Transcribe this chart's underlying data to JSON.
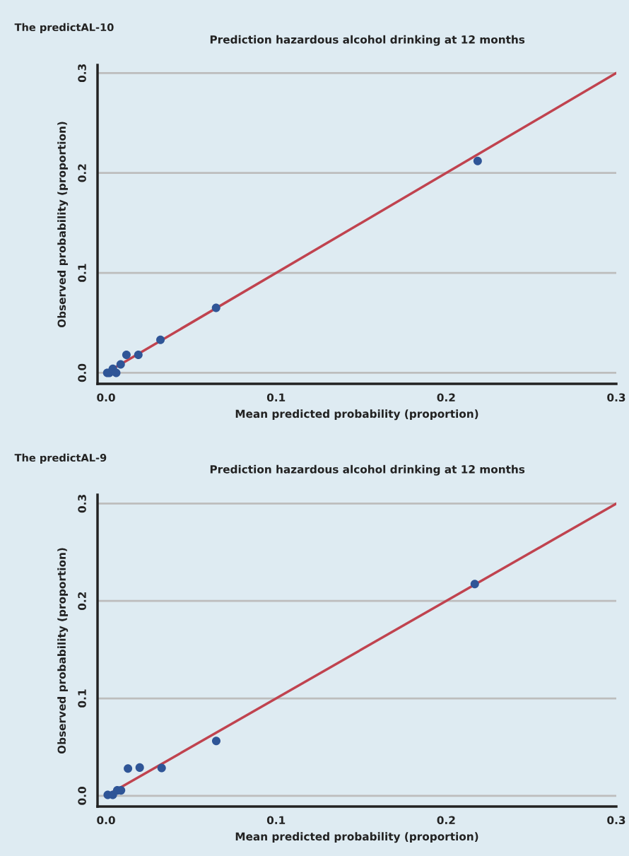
{
  "chart_data": [
    {
      "type": "scatter",
      "subtitle": "The predictAL-10",
      "title": "Prediction hazardous alcohol drinking at 12 months",
      "xlabel": "Mean predicted probability (proportion)",
      "ylabel": "Observed probability (proportion)",
      "series": [
        {
          "marker": "circle",
          "color": "#2f5597",
          "x": [
            0.0007,
            0.002,
            0.004,
            0.006,
            0.0086,
            0.012,
            0.019,
            0.032,
            0.0647,
            0.2185
          ],
          "values": [
            0.0,
            0.0,
            0.004,
            0.0,
            0.0085,
            0.018,
            0.018,
            0.033,
            0.065,
            0.212
          ]
        },
        {
          "type": "line",
          "marker": "none",
          "color": "#c0434f",
          "x": [
            0,
            0.3
          ],
          "values": [
            0,
            0.3
          ]
        }
      ],
      "xlim": [
        -0.005,
        0.3
      ],
      "ylim": [
        -0.011,
        0.308
      ],
      "xticks": [
        {
          "value": 0,
          "label": "0.0"
        },
        0.1,
        0.2,
        0.3
      ],
      "yticks": [
        {
          "value": 0,
          "label": "0.0"
        },
        0.1,
        0.2,
        0.3
      ],
      "grid": "y"
    },
    {
      "type": "scatter",
      "subtitle": "The predictAL-9",
      "title": "Prediction hazardous alcohol drinking at 12 months",
      "xlabel": "Mean predicted probability (proportion)",
      "ylabel": "Observed probability (proportion)",
      "series": [
        {
          "marker": "circle",
          "color": "#2f5597",
          "x": [
            0.001,
            0.004,
            0.0066,
            0.0088,
            0.0129,
            0.0198,
            0.0327,
            0.0648,
            0.2168
          ],
          "values": [
            0.001,
            0.001,
            0.0056,
            0.0056,
            0.028,
            0.029,
            0.0285,
            0.0563,
            0.2174
          ]
        },
        {
          "type": "line",
          "marker": "none",
          "color": "#c0434f",
          "x": [
            0,
            0.3
          ],
          "values": [
            0,
            0.3
          ]
        }
      ],
      "xlim": [
        -0.005,
        0.3
      ],
      "ylim": [
        -0.011,
        0.309
      ],
      "xticks": [
        {
          "value": 0,
          "label": "0.0"
        },
        0.1,
        0.2,
        0.3
      ],
      "yticks": [
        {
          "value": 0,
          "label": "0.0"
        },
        0.1,
        0.2,
        0.3
      ],
      "grid": "y"
    }
  ]
}
